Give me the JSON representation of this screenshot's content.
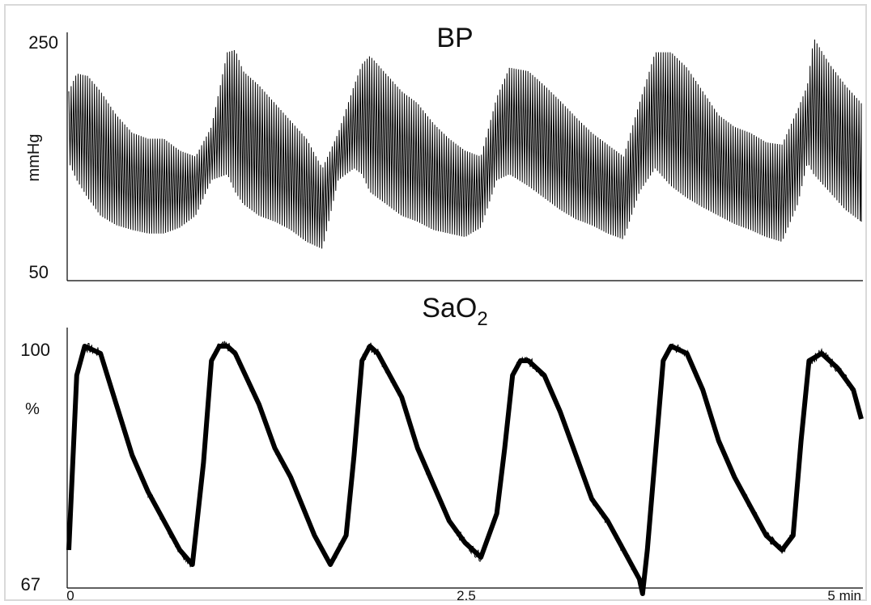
{
  "colors": {
    "background": "#ffffff",
    "trace": "#000000",
    "axis": "#000000",
    "frame": "#d9d9d9"
  },
  "chart_data": [
    {
      "type": "line",
      "title": "BP",
      "xlabel": "",
      "ylabel": "mmHg",
      "ylim": [
        50,
        250
      ],
      "xlim": [
        0,
        5
      ],
      "x_unit": "min",
      "y_ticks": [
        "250",
        "50"
      ],
      "grid": false,
      "legend": "none",
      "series": [
        {
          "kind": "envelope",
          "x": [
            0.0,
            0.05,
            0.12,
            0.2,
            0.3,
            0.4,
            0.5,
            0.6,
            0.7,
            0.8,
            0.9,
            1.0,
            1.05,
            1.1,
            1.2,
            1.3,
            1.4,
            1.5,
            1.6,
            1.7,
            1.8,
            1.85,
            1.9,
            2.0,
            2.1,
            2.2,
            2.3,
            2.4,
            2.5,
            2.6,
            2.7,
            2.78,
            2.9,
            3.0,
            3.1,
            3.2,
            3.3,
            3.4,
            3.5,
            3.6,
            3.7,
            3.8,
            3.9,
            4.0,
            4.1,
            4.2,
            4.3,
            4.4,
            4.5,
            4.6,
            4.66,
            4.7,
            4.8,
            4.9,
            5.0
          ],
          "systolic": [
            205,
            220,
            218,
            205,
            185,
            170,
            165,
            165,
            155,
            150,
            175,
            238,
            240,
            222,
            210,
            195,
            180,
            165,
            140,
            170,
            210,
            228,
            235,
            220,
            205,
            195,
            178,
            165,
            155,
            150,
            200,
            225,
            222,
            210,
            197,
            183,
            170,
            160,
            150,
            195,
            238,
            238,
            225,
            205,
            185,
            175,
            170,
            162,
            160,
            190,
            210,
            250,
            228,
            210,
            195
          ],
          "diastolic": [
            145,
            130,
            115,
            100,
            92,
            88,
            85,
            85,
            90,
            100,
            130,
            135,
            120,
            110,
            100,
            95,
            88,
            78,
            72,
            130,
            140,
            135,
            120,
            110,
            100,
            95,
            88,
            85,
            82,
            90,
            130,
            135,
            125,
            115,
            105,
            97,
            92,
            85,
            80,
            120,
            140,
            125,
            115,
            107,
            100,
            93,
            88,
            82,
            78,
            110,
            145,
            135,
            120,
            105,
            95
          ]
        }
      ]
    },
    {
      "type": "line",
      "title_parts": {
        "main": "SaO",
        "sub": "2"
      },
      "xlabel": "",
      "ylabel": "%",
      "ylim": [
        67,
        100
      ],
      "xlim": [
        0,
        5
      ],
      "x_unit": "min",
      "y_ticks": [
        "100",
        "67"
      ],
      "x_ticks": [
        "0",
        "2.5",
        "5 min"
      ],
      "grid": false,
      "legend": "none",
      "series": [
        {
          "kind": "line",
          "x": [
            0.0,
            0.05,
            0.1,
            0.2,
            0.3,
            0.4,
            0.5,
            0.6,
            0.7,
            0.78,
            0.85,
            0.9,
            0.95,
            1.0,
            1.05,
            1.2,
            1.3,
            1.4,
            1.55,
            1.65,
            1.75,
            1.8,
            1.85,
            1.9,
            1.95,
            2.0,
            2.1,
            2.2,
            2.3,
            2.4,
            2.5,
            2.6,
            2.7,
            2.75,
            2.8,
            2.85,
            2.9,
            3.0,
            3.1,
            3.2,
            3.3,
            3.4,
            3.5,
            3.6,
            3.62,
            3.65,
            3.7,
            3.75,
            3.8,
            3.9,
            4.0,
            4.1,
            4.2,
            4.3,
            4.4,
            4.5,
            4.57,
            4.62,
            4.67,
            4.75,
            4.85,
            4.95,
            5.0
          ],
          "y": [
            72,
            96,
            100,
            99,
            92,
            85,
            80,
            76,
            72,
            70,
            84,
            98,
            100,
            100,
            99,
            92,
            86,
            82,
            74,
            70,
            74,
            85,
            98,
            100,
            99,
            97,
            93,
            86,
            81,
            76,
            73,
            71,
            77,
            86,
            96,
            98,
            98,
            96,
            91,
            85,
            79,
            76,
            72,
            68,
            66,
            72,
            85,
            98,
            100,
            99,
            94,
            87,
            82,
            78,
            74,
            72,
            74,
            87,
            98,
            99,
            97,
            94,
            90
          ]
        }
      ]
    }
  ]
}
